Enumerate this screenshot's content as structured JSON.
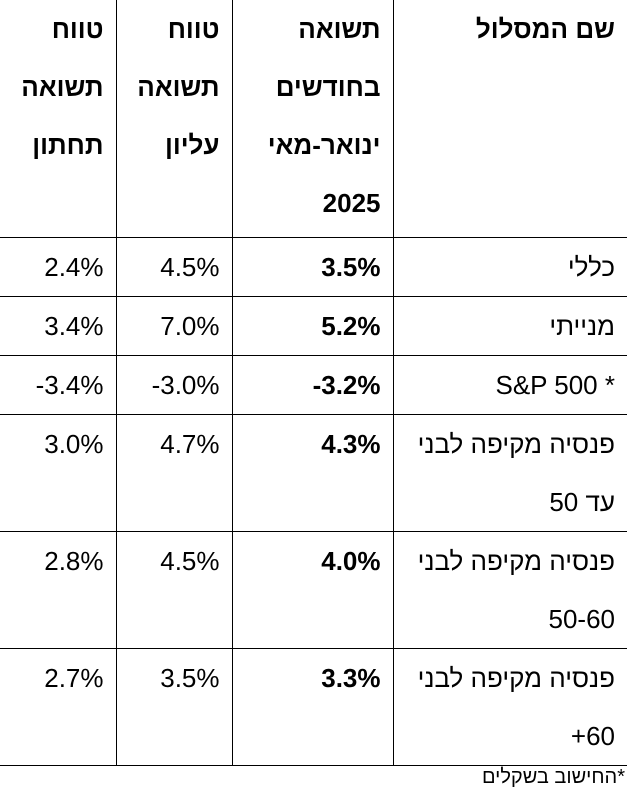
{
  "table": {
    "headers": {
      "track_name": "שם המסלול",
      "return": "תשואה בחודשים ינואר-מאי 2025",
      "upper_range": "טווח תשואה עליון",
      "lower_range": "טווח תשואה תחתון"
    },
    "rows": [
      {
        "name": "כללי",
        "return": "3.5%",
        "upper": "4.5%",
        "lower": "2.4%"
      },
      {
        "name": "מנייתי",
        "return": "5.2%",
        "upper": "7.0%",
        "lower": "3.4%"
      },
      {
        "name": "S&P 500  *",
        "return": "-3.2%",
        "upper": "-3.0%",
        "lower": "-3.4%"
      },
      {
        "name": "פנסיה מקיפה לבני עד 50",
        "return": "4.3%",
        "upper": "4.7%",
        "lower": "3.0%"
      },
      {
        "name": "פנסיה מקיפה לבני 50-60",
        "return": "4.0%",
        "upper": "4.5%",
        "lower": "2.8%"
      },
      {
        "name": "פנסיה מקיפה לבני 60+",
        "return": "3.3%",
        "upper": "3.5%",
        "lower": "2.7%"
      }
    ]
  },
  "footnote": "*החישוב בשקלים"
}
